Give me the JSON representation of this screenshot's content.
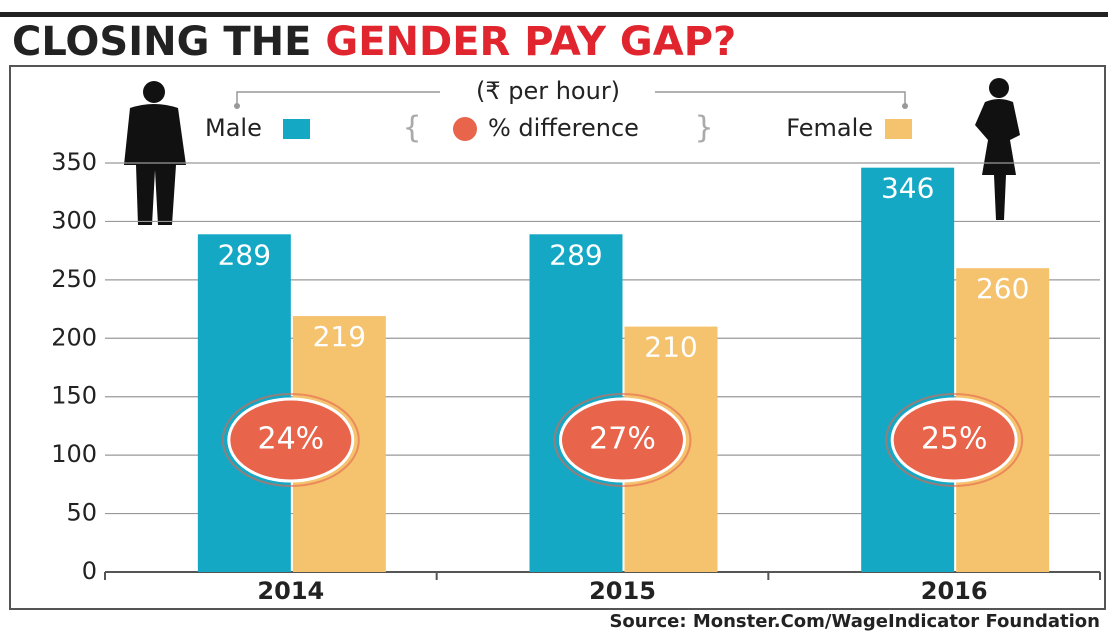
{
  "chart_data": {
    "type": "bar",
    "title": "CLOSING THE",
    "title_highlight": "GENDER PAY GAP?",
    "subtitle": "(₹ per hour)",
    "categories": [
      "2014",
      "2015",
      "2016"
    ],
    "series": [
      {
        "name": "Male",
        "color": "#15a8c5",
        "values": [
          289,
          289,
          346
        ]
      },
      {
        "name": "Female",
        "color": "#f5c26e",
        "values": [
          219,
          210,
          260
        ]
      }
    ],
    "difference": {
      "name": "% difference",
      "color": "#e8644b",
      "values": [
        24,
        27,
        25
      ],
      "value_labels": [
        "24%",
        "27%",
        "25%"
      ]
    },
    "ylim": [
      0,
      350
    ],
    "yticks": [
      0,
      50,
      100,
      150,
      200,
      250,
      300,
      350
    ],
    "grid": true,
    "source": "Source: Monster.Com/WageIndicator Foundation"
  }
}
